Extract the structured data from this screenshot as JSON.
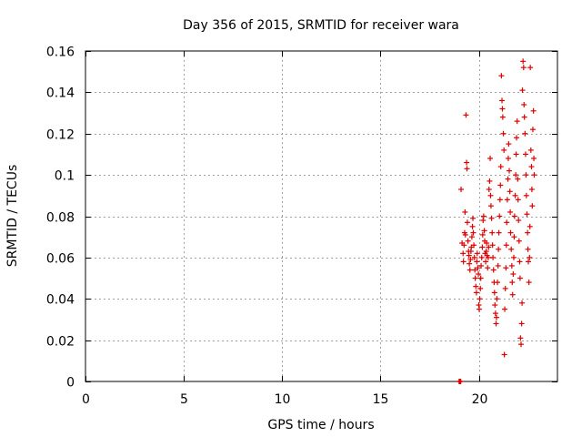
{
  "chart_data": {
    "type": "scatter",
    "title": "Day 356 of 2015, SRMTID for receiver wara",
    "xlabel": "GPS time / hours",
    "ylabel": "SRMTID / TECUs",
    "xlim": [
      0,
      24
    ],
    "ylim": [
      0,
      0.16
    ],
    "x_ticks": [
      0,
      5,
      10,
      15,
      20
    ],
    "x_tick_labels": [
      "0",
      "5",
      "10",
      "15",
      "20"
    ],
    "y_ticks": [
      0,
      0.02,
      0.04,
      0.06,
      0.08,
      0.1,
      0.12,
      0.14,
      0.16
    ],
    "y_tick_labels": [
      "0",
      "0.02",
      "0.04",
      "0.06",
      "0.08",
      "0.1",
      "0.12",
      "0.14",
      "0.16"
    ],
    "grid": true,
    "marker": "+",
    "marker_color": "#e00000",
    "series": [
      {
        "name": "SRMTID",
        "points": [
          [
            19.0,
            0.0
          ],
          [
            19.02,
            0.0
          ],
          [
            19.04,
            0.0
          ],
          [
            19.06,
            0.0
          ],
          [
            19.08,
            0.0
          ],
          [
            19.1,
            0.093
          ],
          [
            19.15,
            0.067
          ],
          [
            19.2,
            0.062
          ],
          [
            19.22,
            0.058
          ],
          [
            19.25,
            0.066
          ],
          [
            19.28,
            0.072
          ],
          [
            19.3,
            0.082
          ],
          [
            19.32,
            0.071
          ],
          [
            19.35,
            0.129
          ],
          [
            19.38,
            0.106
          ],
          [
            19.4,
            0.103
          ],
          [
            19.42,
            0.077
          ],
          [
            19.45,
            0.068
          ],
          [
            19.48,
            0.063
          ],
          [
            19.5,
            0.061
          ],
          [
            19.52,
            0.057
          ],
          [
            19.55,
            0.054
          ],
          [
            19.58,
            0.059
          ],
          [
            19.6,
            0.063
          ],
          [
            19.62,
            0.065
          ],
          [
            19.65,
            0.07
          ],
          [
            19.68,
            0.075
          ],
          [
            19.7,
            0.079
          ],
          [
            19.72,
            0.072
          ],
          [
            19.75,
            0.066
          ],
          [
            19.78,
            0.06
          ],
          [
            19.8,
            0.054
          ],
          [
            19.82,
            0.05
          ],
          [
            19.85,
            0.046
          ],
          [
            19.88,
            0.043
          ],
          [
            19.9,
            0.058
          ],
          [
            19.92,
            0.062
          ],
          [
            19.95,
            0.055
          ],
          [
            19.98,
            0.052
          ],
          [
            20.0,
            0.037
          ],
          [
            20.02,
            0.035
          ],
          [
            20.05,
            0.04
          ],
          [
            20.08,
            0.045
          ],
          [
            20.1,
            0.05
          ],
          [
            20.12,
            0.056
          ],
          [
            20.15,
            0.06
          ],
          [
            20.18,
            0.065
          ],
          [
            20.2,
            0.071
          ],
          [
            20.22,
            0.078
          ],
          [
            20.25,
            0.08
          ],
          [
            20.28,
            0.073
          ],
          [
            20.3,
            0.068
          ],
          [
            20.32,
            0.062
          ],
          [
            20.35,
            0.058
          ],
          [
            20.38,
            0.063
          ],
          [
            20.4,
            0.067
          ],
          [
            20.42,
            0.061
          ],
          [
            20.45,
            0.055
          ],
          [
            20.48,
            0.06
          ],
          [
            20.5,
            0.065
          ],
          [
            20.52,
            0.093
          ],
          [
            20.55,
            0.097
          ],
          [
            20.58,
            0.108
          ],
          [
            20.6,
            0.09
          ],
          [
            20.62,
            0.085
          ],
          [
            20.65,
            0.079
          ],
          [
            20.68,
            0.072
          ],
          [
            20.7,
            0.066
          ],
          [
            20.72,
            0.06
          ],
          [
            20.75,
            0.054
          ],
          [
            20.78,
            0.048
          ],
          [
            20.8,
            0.043
          ],
          [
            20.82,
            0.037
          ],
          [
            20.85,
            0.033
          ],
          [
            20.88,
            0.028
          ],
          [
            20.9,
            0.031
          ],
          [
            20.92,
            0.04
          ],
          [
            20.95,
            0.048
          ],
          [
            20.98,
            0.056
          ],
          [
            21.0,
            0.064
          ],
          [
            21.02,
            0.072
          ],
          [
            21.05,
            0.08
          ],
          [
            21.08,
            0.088
          ],
          [
            21.1,
            0.095
          ],
          [
            21.12,
            0.104
          ],
          [
            21.15,
            0.148
          ],
          [
            21.18,
            0.136
          ],
          [
            21.2,
            0.132
          ],
          [
            21.22,
            0.128
          ],
          [
            21.25,
            0.12
          ],
          [
            21.28,
            0.112
          ],
          [
            21.3,
            0.013
          ],
          [
            21.32,
            0.035
          ],
          [
            21.35,
            0.045
          ],
          [
            21.38,
            0.055
          ],
          [
            21.4,
            0.066
          ],
          [
            21.42,
            0.077
          ],
          [
            21.45,
            0.088
          ],
          [
            21.48,
            0.098
          ],
          [
            21.5,
            0.108
          ],
          [
            21.52,
            0.115
          ],
          [
            21.55,
            0.102
          ],
          [
            21.58,
            0.092
          ],
          [
            21.6,
            0.082
          ],
          [
            21.62,
            0.072
          ],
          [
            21.65,
            0.064
          ],
          [
            21.68,
            0.056
          ],
          [
            21.7,
            0.048
          ],
          [
            21.72,
            0.042
          ],
          [
            21.75,
            0.052
          ],
          [
            21.78,
            0.06
          ],
          [
            21.8,
            0.07
          ],
          [
            21.82,
            0.08
          ],
          [
            21.85,
            0.09
          ],
          [
            21.88,
            0.1
          ],
          [
            21.9,
            0.11
          ],
          [
            21.92,
            0.118
          ],
          [
            21.95,
            0.126
          ],
          [
            21.98,
            0.098
          ],
          [
            22.0,
            0.088
          ],
          [
            22.02,
            0.078
          ],
          [
            22.05,
            0.068
          ],
          [
            22.08,
            0.058
          ],
          [
            22.1,
            0.05
          ],
          [
            22.12,
            0.021
          ],
          [
            22.15,
            0.018
          ],
          [
            22.18,
            0.028
          ],
          [
            22.2,
            0.038
          ],
          [
            22.22,
            0.141
          ],
          [
            22.25,
            0.155
          ],
          [
            22.28,
            0.152
          ],
          [
            22.3,
            0.134
          ],
          [
            22.32,
            0.128
          ],
          [
            22.35,
            0.12
          ],
          [
            22.38,
            0.11
          ],
          [
            22.4,
            0.1
          ],
          [
            22.42,
            0.09
          ],
          [
            22.45,
            0.081
          ],
          [
            22.48,
            0.072
          ],
          [
            22.5,
            0.064
          ],
          [
            22.52,
            0.058
          ],
          [
            22.55,
            0.048
          ],
          [
            22.58,
            0.06
          ],
          [
            22.6,
            0.075
          ],
          [
            22.62,
            0.152
          ],
          [
            22.65,
            0.112
          ],
          [
            22.68,
            0.104
          ],
          [
            22.7,
            0.093
          ],
          [
            22.72,
            0.085
          ],
          [
            22.75,
            0.122
          ],
          [
            22.78,
            0.131
          ],
          [
            22.8,
            0.108
          ],
          [
            22.82,
            0.1
          ]
        ]
      }
    ]
  }
}
